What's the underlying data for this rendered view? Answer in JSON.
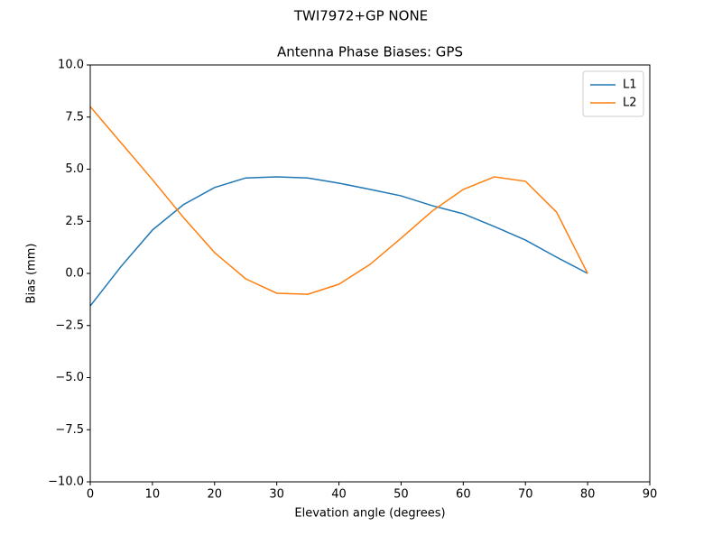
{
  "chart_data": {
    "type": "line",
    "suptitle": "TWI7972+GP      NONE",
    "title": "Antenna Phase Biases: GPS",
    "xlabel": "Elevation angle (degrees)",
    "ylabel": "Bias (mm)",
    "x": [
      0,
      5,
      10,
      15,
      20,
      25,
      30,
      35,
      40,
      45,
      50,
      55,
      60,
      65,
      70,
      75,
      80
    ],
    "series": [
      {
        "name": "L1",
        "color": "#1f77b4",
        "values": [
          -1.56,
          0.35,
          2.08,
          3.3,
          4.12,
          4.58,
          4.63,
          4.58,
          4.33,
          4.03,
          3.72,
          3.25,
          2.86,
          2.25,
          1.6,
          0.78,
          0
        ]
      },
      {
        "name": "L2",
        "color": "#ff7f0e",
        "values": [
          8.0,
          6.25,
          4.5,
          2.68,
          1.0,
          -0.26,
          -0.95,
          -1.0,
          -0.52,
          0.43,
          1.69,
          2.99,
          4.03,
          4.63,
          4.42,
          2.94,
          0
        ]
      }
    ],
    "xlim": [
      0,
      90
    ],
    "xticks": [
      0,
      10,
      20,
      30,
      40,
      50,
      60,
      70,
      80,
      90
    ],
    "ylim": [
      -10,
      10
    ],
    "yticks": [
      {
        "value": -10,
        "label": "−10.0"
      },
      {
        "value": -7.5,
        "label": "−7.5"
      },
      {
        "value": -5,
        "label": "−5.0"
      },
      {
        "value": -2.5,
        "label": "−2.5"
      },
      {
        "value": 0,
        "label": "0.0"
      },
      2.5,
      {
        "value": 5,
        "label": "5.0"
      },
      7.5,
      {
        "value": 10,
        "label": "10.0"
      }
    ],
    "legend": "upper right"
  }
}
